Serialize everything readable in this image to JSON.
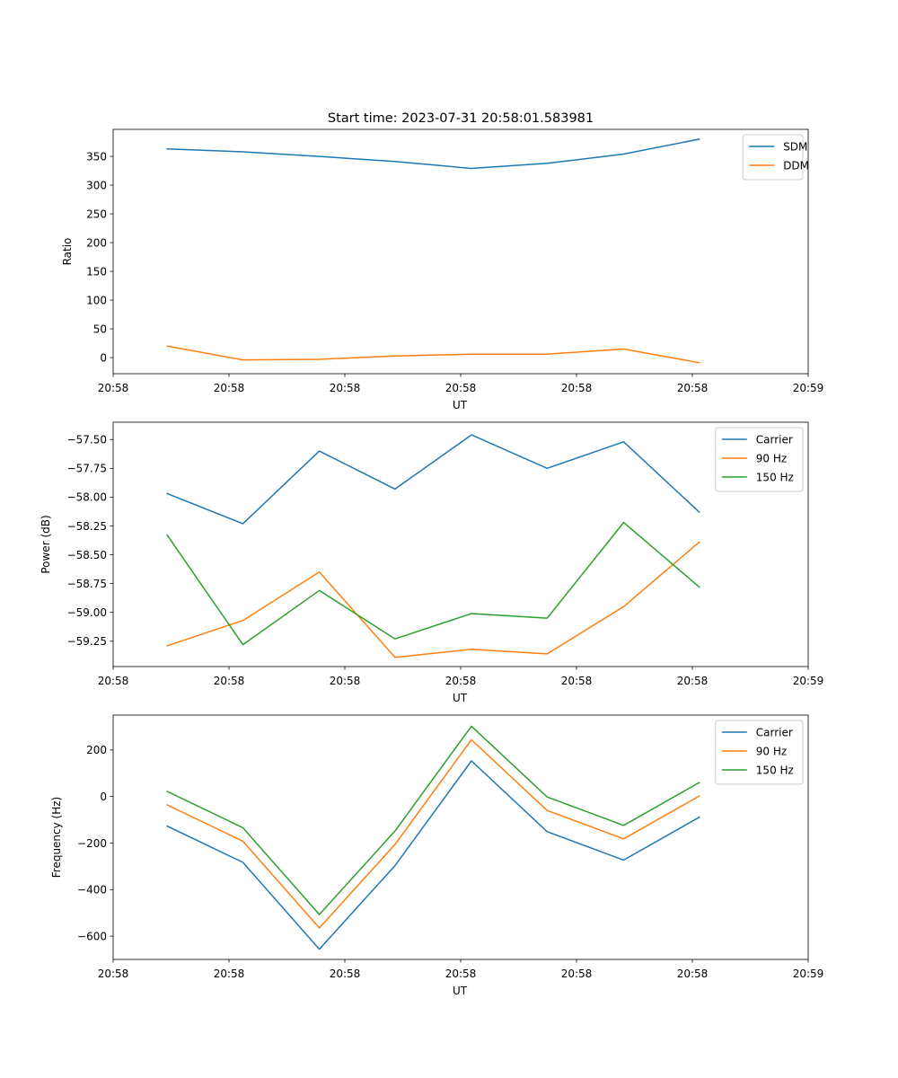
{
  "figure_title": "Start time: 2023-07-31 20:58:01.583981",
  "chart_data": [
    {
      "type": "line",
      "title": "Start time: 2023-07-31 20:58:01.583981",
      "xlabel": "UT",
      "ylabel": "Ratio",
      "x_tick_labels": [
        "20:58",
        "20:58",
        "20:58",
        "20:58",
        "20:58",
        "20:58",
        "20:59"
      ],
      "y_ticks": [
        0,
        50,
        100,
        150,
        200,
        250,
        300,
        350
      ],
      "ylim": [
        -28,
        397
      ],
      "xlim": [
        0,
        9
      ],
      "x_tick_positions": [
        0,
        1.5,
        3,
        4.5,
        6,
        7.5,
        9
      ],
      "x": [
        0.7,
        1.68,
        2.67,
        3.65,
        4.64,
        5.62,
        6.61,
        7.59
      ],
      "legend_position": "upper right",
      "series": [
        {
          "name": "SDM",
          "color": "#1f77b4",
          "values": [
            363,
            358,
            350,
            341,
            329,
            338,
            354,
            380
          ]
        },
        {
          "name": "DDM",
          "color": "#ff7f0e",
          "values": [
            20,
            -4,
            -3,
            3,
            6,
            6,
            15,
            -9
          ]
        }
      ]
    },
    {
      "type": "line",
      "xlabel": "UT",
      "ylabel": "Power (dB)",
      "x_tick_labels": [
        "20:58",
        "20:58",
        "20:58",
        "20:58",
        "20:58",
        "20:58",
        "20:59"
      ],
      "y_ticks": [
        -59.25,
        -59.0,
        -58.75,
        -58.5,
        -58.25,
        -58.0,
        -57.75,
        -57.5
      ],
      "y_tick_labels": [
        "−59.25",
        "−59.00",
        "−58.75",
        "−58.50",
        "−58.25",
        "−58.00",
        "−57.75",
        "−57.50"
      ],
      "ylim": [
        -59.47,
        -57.35
      ],
      "xlim": [
        0,
        9
      ],
      "x_tick_positions": [
        0,
        1.5,
        3,
        4.5,
        6,
        7.5,
        9
      ],
      "x": [
        0.7,
        1.68,
        2.67,
        3.65,
        4.64,
        5.62,
        6.61,
        7.59
      ],
      "legend_position": "upper right",
      "series": [
        {
          "name": "Carrier",
          "color": "#1f77b4",
          "values": [
            -57.97,
            -58.23,
            -57.6,
            -57.93,
            -57.46,
            -57.75,
            -57.52,
            -58.13
          ]
        },
        {
          "name": "90 Hz",
          "color": "#ff7f0e",
          "values": [
            -59.29,
            -59.07,
            -58.65,
            -59.39,
            -59.32,
            -59.36,
            -58.95,
            -58.39
          ]
        },
        {
          "name": "150 Hz",
          "color": "#2ca02c",
          "values": [
            -58.33,
            -59.28,
            -58.81,
            -59.23,
            -59.01,
            -59.05,
            -58.22,
            -58.78
          ]
        }
      ]
    },
    {
      "type": "line",
      "xlabel": "UT",
      "ylabel": "Frequency (Hz)",
      "x_tick_labels": [
        "20:58",
        "20:58",
        "20:58",
        "20:58",
        "20:58",
        "20:58",
        "20:59"
      ],
      "y_ticks": [
        -600,
        -400,
        -200,
        0,
        200
      ],
      "y_tick_labels": [
        "−600",
        "−400",
        "−200",
        "0",
        "200"
      ],
      "ylim": [
        -700,
        350
      ],
      "xlim": [
        0,
        9
      ],
      "x_tick_positions": [
        0,
        1.5,
        3,
        4.5,
        6,
        7.5,
        9
      ],
      "x": [
        0.7,
        1.68,
        2.67,
        3.65,
        4.64,
        5.62,
        6.61,
        7.59
      ],
      "legend_position": "upper right",
      "series": [
        {
          "name": "Carrier",
          "color": "#1f77b4",
          "values": [
            -127,
            -283,
            -656,
            -297,
            153,
            -151,
            -273,
            -89
          ]
        },
        {
          "name": "90 Hz",
          "color": "#ff7f0e",
          "values": [
            -36,
            -192,
            -565,
            -206,
            244,
            -60,
            -182,
            2
          ]
        },
        {
          "name": "150 Hz",
          "color": "#2ca02c",
          "values": [
            22,
            -134,
            -507,
            -148,
            302,
            -2,
            -124,
            60
          ]
        }
      ]
    }
  ]
}
